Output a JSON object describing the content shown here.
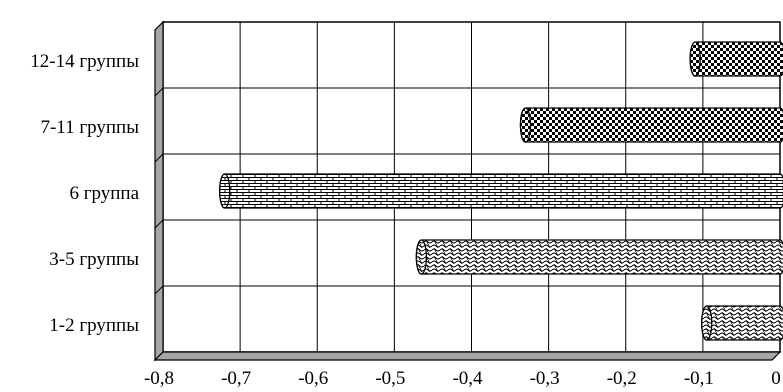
{
  "chart_data": {
    "type": "bar",
    "orientation": "horizontal",
    "style": "3d-cylinder",
    "categories": [
      "12-14 группы",
      "7-11 группы",
      "6 группа",
      "3-5 группы",
      "1-2 группы"
    ],
    "values": [
      -0.11,
      -0.33,
      -0.72,
      -0.465,
      -0.095
    ],
    "patterns": [
      "checker",
      "checker",
      "brick",
      "wave",
      "wave"
    ],
    "xlim": [
      -0.8,
      0
    ],
    "xticks": [
      -0.8,
      -0.7,
      -0.6,
      -0.5,
      -0.4,
      -0.3,
      -0.2,
      -0.1,
      0
    ],
    "xtick_labels": [
      "-0,8",
      "-0,7",
      "-0,6",
      "-0,5",
      "-0,4",
      "-0,3",
      "-0,2",
      "-0,1",
      "0"
    ],
    "grid": true,
    "legend": "none",
    "title": "",
    "xlabel": "",
    "ylabel": ""
  }
}
